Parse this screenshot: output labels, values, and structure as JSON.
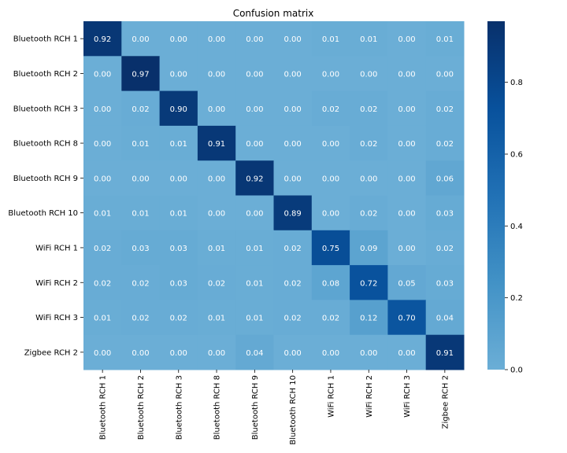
{
  "chart_data": {
    "type": "heatmap",
    "title": "Confusion matrix",
    "xlabel": "",
    "ylabel": "",
    "row_labels": [
      "Bluetooth RCH 1",
      "Bluetooth RCH 2",
      "Bluetooth RCH 3",
      "Bluetooth RCH 8",
      "Bluetooth RCH 9",
      "Bluetooth RCH 10",
      "WiFi RCH 1",
      "WiFi RCH 2",
      "WiFi RCH 3",
      "Zigbee RCH 2"
    ],
    "col_labels": [
      "Bluetooth RCH 1",
      "Bluetooth RCH 2",
      "Bluetooth RCH 3",
      "Bluetooth RCH 8",
      "Bluetooth RCH 9",
      "Bluetooth RCH 10",
      "WiFi RCH 1",
      "WiFi RCH 2",
      "WiFi RCH 3",
      "Zigbee RCH 2"
    ],
    "values": [
      [
        0.92,
        0.0,
        0.0,
        0.0,
        0.0,
        0.0,
        0.01,
        0.01,
        0.0,
        0.01
      ],
      [
        0.0,
        0.97,
        0.0,
        0.0,
        0.0,
        0.0,
        0.0,
        0.0,
        0.0,
        0.0
      ],
      [
        0.0,
        0.02,
        0.9,
        0.0,
        0.0,
        0.0,
        0.02,
        0.02,
        0.0,
        0.02
      ],
      [
        0.0,
        0.01,
        0.01,
        0.91,
        0.0,
        0.0,
        0.0,
        0.02,
        0.0,
        0.02
      ],
      [
        0.0,
        0.0,
        0.0,
        0.0,
        0.92,
        0.0,
        0.0,
        0.0,
        0.0,
        0.06
      ],
      [
        0.01,
        0.01,
        0.01,
        0.0,
        0.0,
        0.89,
        0.0,
        0.02,
        0.0,
        0.03
      ],
      [
        0.02,
        0.03,
        0.03,
        0.01,
        0.01,
        0.02,
        0.75,
        0.09,
        0.0,
        0.02
      ],
      [
        0.02,
        0.02,
        0.03,
        0.02,
        0.01,
        0.02,
        0.08,
        0.72,
        0.05,
        0.03
      ],
      [
        0.01,
        0.02,
        0.02,
        0.01,
        0.01,
        0.02,
        0.02,
        0.12,
        0.7,
        0.04
      ],
      [
        0.0,
        0.0,
        0.0,
        0.0,
        0.04,
        0.0,
        0.0,
        0.0,
        0.0,
        0.91
      ]
    ],
    "colorbar": {
      "range": [
        0.0,
        0.97
      ],
      "ticks": [
        0.0,
        0.2,
        0.4,
        0.6,
        0.8
      ],
      "tick_labels": [
        "0.0",
        "0.2",
        "0.4",
        "0.6",
        "0.8"
      ]
    },
    "colormap": {
      "low": "#6baed6",
      "high": "#08306b",
      "stops": [
        "#6baed6",
        "#4292c6",
        "#2171b5",
        "#08519c",
        "#08306b"
      ]
    },
    "text_colors": {
      "light": "#ffffff",
      "dark": "#000000"
    }
  }
}
